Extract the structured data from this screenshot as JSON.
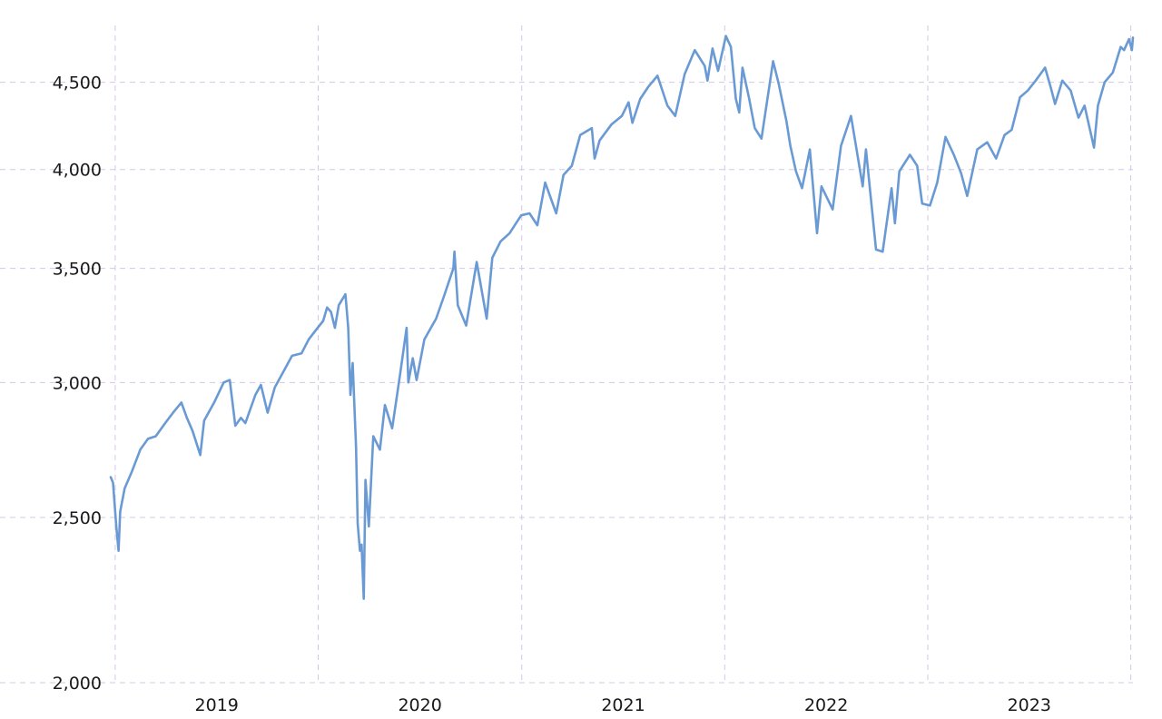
{
  "chart_data": {
    "type": "line",
    "title": "",
    "xlabel": "",
    "ylabel": "",
    "y_scale": "log",
    "ylim": [
      2000,
      4800
    ],
    "xlim": [
      "2018-12-24",
      "2024-01-05"
    ],
    "grid": true,
    "legend": "none",
    "y_ticks": [
      {
        "value": 2000,
        "label": "2,000"
      },
      {
        "value": 2500,
        "label": "2,500"
      },
      {
        "value": 3000,
        "label": "3,000"
      },
      {
        "value": 3500,
        "label": "3,500"
      },
      {
        "value": 4000,
        "label": "4,000"
      },
      {
        "value": 4500,
        "label": "4,500"
      }
    ],
    "x_ticks": [
      {
        "date": "2019-01-01",
        "label": "2019"
      },
      {
        "date": "2020-01-01",
        "label": "2020"
      },
      {
        "date": "2021-01-01",
        "label": "2021"
      },
      {
        "date": "2022-01-01",
        "label": "2022"
      },
      {
        "date": "2023-01-01",
        "label": "2023"
      },
      {
        "date": "2024-01-01",
        "label": ""
      }
    ],
    "series": [
      {
        "color": "#6a9ad4",
        "points": [
          [
            "2018-12-24",
            2640
          ],
          [
            "2018-12-28",
            2620
          ],
          [
            "2019-01-03",
            2470
          ],
          [
            "2019-01-07",
            2390
          ],
          [
            "2019-01-10",
            2520
          ],
          [
            "2019-01-18",
            2600
          ],
          [
            "2019-01-31",
            2660
          ],
          [
            "2019-02-15",
            2740
          ],
          [
            "2019-03-01",
            2780
          ],
          [
            "2019-03-15",
            2790
          ],
          [
            "2019-04-01",
            2840
          ],
          [
            "2019-04-15",
            2880
          ],
          [
            "2019-04-30",
            2920
          ],
          [
            "2019-05-10",
            2860
          ],
          [
            "2019-05-20",
            2810
          ],
          [
            "2019-06-03",
            2720
          ],
          [
            "2019-06-10",
            2850
          ],
          [
            "2019-06-28",
            2920
          ],
          [
            "2019-07-15",
            3000
          ],
          [
            "2019-07-26",
            3010
          ],
          [
            "2019-08-05",
            2830
          ],
          [
            "2019-08-15",
            2860
          ],
          [
            "2019-08-23",
            2840
          ],
          [
            "2019-09-10",
            2950
          ],
          [
            "2019-09-20",
            2990
          ],
          [
            "2019-10-02",
            2880
          ],
          [
            "2019-10-15",
            2980
          ],
          [
            "2019-11-01",
            3050
          ],
          [
            "2019-11-15",
            3110
          ],
          [
            "2019-12-02",
            3120
          ],
          [
            "2019-12-15",
            3180
          ],
          [
            "2019-12-31",
            3230
          ],
          [
            "2020-01-10",
            3260
          ],
          [
            "2020-01-17",
            3320
          ],
          [
            "2020-01-24",
            3300
          ],
          [
            "2020-01-31",
            3230
          ],
          [
            "2020-02-07",
            3330
          ],
          [
            "2020-02-19",
            3380
          ],
          [
            "2020-02-24",
            3230
          ],
          [
            "2020-02-28",
            2950
          ],
          [
            "2020-03-03",
            3080
          ],
          [
            "2020-03-09",
            2750
          ],
          [
            "2020-03-12",
            2480
          ],
          [
            "2020-03-16",
            2390
          ],
          [
            "2020-03-19",
            2410
          ],
          [
            "2020-03-23",
            2240
          ],
          [
            "2020-03-26",
            2630
          ],
          [
            "2020-04-01",
            2470
          ],
          [
            "2020-04-09",
            2790
          ],
          [
            "2020-04-21",
            2740
          ],
          [
            "2020-04-30",
            2910
          ],
          [
            "2020-05-13",
            2820
          ],
          [
            "2020-05-27",
            3030
          ],
          [
            "2020-06-08",
            3230
          ],
          [
            "2020-06-11",
            3000
          ],
          [
            "2020-06-19",
            3100
          ],
          [
            "2020-06-26",
            3010
          ],
          [
            "2020-07-10",
            3180
          ],
          [
            "2020-07-31",
            3270
          ],
          [
            "2020-08-14",
            3370
          ],
          [
            "2020-08-31",
            3500
          ],
          [
            "2020-09-02",
            3580
          ],
          [
            "2020-09-08",
            3330
          ],
          [
            "2020-09-23",
            3240
          ],
          [
            "2020-10-12",
            3530
          ],
          [
            "2020-10-30",
            3270
          ],
          [
            "2020-11-09",
            3550
          ],
          [
            "2020-11-24",
            3630
          ],
          [
            "2020-12-10",
            3670
          ],
          [
            "2020-12-31",
            3760
          ],
          [
            "2021-01-15",
            3770
          ],
          [
            "2021-01-29",
            3710
          ],
          [
            "2021-02-12",
            3930
          ],
          [
            "2021-03-04",
            3770
          ],
          [
            "2021-03-17",
            3970
          ],
          [
            "2021-04-01",
            4020
          ],
          [
            "2021-04-16",
            4190
          ],
          [
            "2021-05-07",
            4230
          ],
          [
            "2021-05-12",
            4060
          ],
          [
            "2021-05-21",
            4160
          ],
          [
            "2021-06-11",
            4250
          ],
          [
            "2021-06-30",
            4300
          ],
          [
            "2021-07-12",
            4380
          ],
          [
            "2021-07-19",
            4260
          ],
          [
            "2021-08-02",
            4400
          ],
          [
            "2021-08-16",
            4470
          ],
          [
            "2021-09-02",
            4540
          ],
          [
            "2021-09-20",
            4360
          ],
          [
            "2021-10-04",
            4300
          ],
          [
            "2021-10-21",
            4550
          ],
          [
            "2021-11-08",
            4700
          ],
          [
            "2021-11-26",
            4600
          ],
          [
            "2021-12-01",
            4510
          ],
          [
            "2021-12-10",
            4710
          ],
          [
            "2021-12-20",
            4570
          ],
          [
            "2022-01-03",
            4790
          ],
          [
            "2022-01-12",
            4720
          ],
          [
            "2022-01-21",
            4400
          ],
          [
            "2022-01-27",
            4320
          ],
          [
            "2022-02-02",
            4590
          ],
          [
            "2022-02-14",
            4400
          ],
          [
            "2022-02-24",
            4230
          ],
          [
            "2022-03-08",
            4170
          ],
          [
            "2022-03-29",
            4630
          ],
          [
            "2022-04-08",
            4490
          ],
          [
            "2022-04-22",
            4270
          ],
          [
            "2022-04-29",
            4130
          ],
          [
            "2022-05-09",
            3990
          ],
          [
            "2022-05-20",
            3900
          ],
          [
            "2022-06-03",
            4110
          ],
          [
            "2022-06-16",
            3670
          ],
          [
            "2022-06-24",
            3910
          ],
          [
            "2022-07-14",
            3790
          ],
          [
            "2022-07-29",
            4130
          ],
          [
            "2022-08-16",
            4300
          ],
          [
            "2022-09-06",
            3910
          ],
          [
            "2022-09-12",
            4110
          ],
          [
            "2022-09-30",
            3590
          ],
          [
            "2022-10-12",
            3580
          ],
          [
            "2022-10-28",
            3900
          ],
          [
            "2022-11-03",
            3720
          ],
          [
            "2022-11-11",
            3990
          ],
          [
            "2022-11-30",
            4080
          ],
          [
            "2022-12-13",
            4020
          ],
          [
            "2022-12-22",
            3820
          ],
          [
            "2023-01-05",
            3810
          ],
          [
            "2023-01-18",
            3930
          ],
          [
            "2023-02-02",
            4180
          ],
          [
            "2023-02-17",
            4080
          ],
          [
            "2023-03-02",
            3980
          ],
          [
            "2023-03-13",
            3860
          ],
          [
            "2023-03-31",
            4110
          ],
          [
            "2023-04-18",
            4150
          ],
          [
            "2023-05-04",
            4060
          ],
          [
            "2023-05-19",
            4190
          ],
          [
            "2023-06-01",
            4220
          ],
          [
            "2023-06-16",
            4410
          ],
          [
            "2023-06-30",
            4450
          ],
          [
            "2023-07-14",
            4510
          ],
          [
            "2023-07-31",
            4590
          ],
          [
            "2023-08-11",
            4460
          ],
          [
            "2023-08-18",
            4370
          ],
          [
            "2023-08-31",
            4510
          ],
          [
            "2023-09-15",
            4450
          ],
          [
            "2023-09-29",
            4290
          ],
          [
            "2023-10-10",
            4360
          ],
          [
            "2023-10-27",
            4120
          ],
          [
            "2023-11-03",
            4360
          ],
          [
            "2023-11-15",
            4500
          ],
          [
            "2023-11-30",
            4560
          ],
          [
            "2023-12-14",
            4720
          ],
          [
            "2023-12-20",
            4700
          ],
          [
            "2023-12-29",
            4770
          ],
          [
            "2024-01-03",
            4700
          ],
          [
            "2024-01-05",
            4780
          ]
        ]
      }
    ]
  }
}
